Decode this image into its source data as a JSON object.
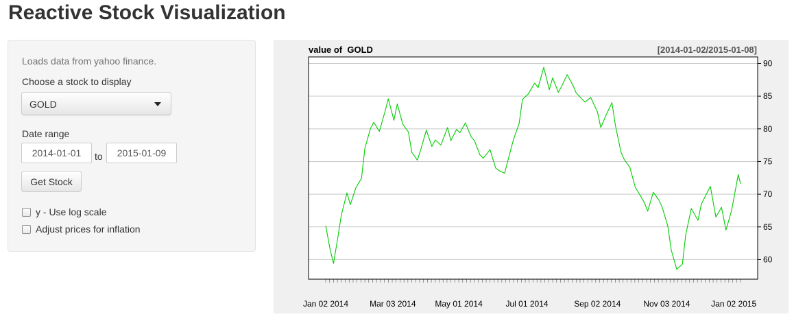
{
  "page": {
    "title": "Reactive Stock Visualization"
  },
  "sidebar": {
    "help_text": "Loads data from yahoo finance.",
    "stock_label": "Choose a stock to display",
    "stock_selected": "GOLD",
    "date_range_label": "Date range",
    "date_start": "2014-01-01",
    "date_to": "to",
    "date_end": "2015-01-09",
    "get_stock_button": "Get Stock",
    "log_scale_label": "y - Use log scale",
    "log_scale_checked": false,
    "inflation_label": "Adjust prices for inflation",
    "inflation_checked": false
  },
  "chart_data": {
    "type": "line",
    "title": "value of  GOLD",
    "date_range_label": "[2014-01-02/2015-01-08]",
    "line_color": "#00cc00",
    "grid": true,
    "y_axis_side": "right",
    "ylim": [
      57,
      91
    ],
    "y_ticks": [
      60,
      65,
      70,
      75,
      80,
      85,
      90
    ],
    "x_range": [
      "2014-01-02",
      "2015-01-08"
    ],
    "x_tick_labels": [
      "Jan 02 2014",
      "Mar 03 2014",
      "May 01 2014",
      "Jul 01 2014",
      "Sep 02 2014",
      "Nov 03 2014",
      "Jan 02 2015"
    ],
    "x_tick_dates": [
      "2014-01-02",
      "2014-03-03",
      "2014-05-01",
      "2014-07-01",
      "2014-09-02",
      "2014-11-03",
      "2015-01-02"
    ],
    "series": [
      {
        "x": [
          "2014-01-02",
          "2014-01-06",
          "2014-01-09",
          "2014-01-13",
          "2014-01-16",
          "2014-01-21",
          "2014-01-24",
          "2014-01-29",
          "2014-02-03",
          "2014-02-06",
          "2014-02-11",
          "2014-02-14",
          "2014-02-19",
          "2014-02-24",
          "2014-02-27",
          "2014-03-04",
          "2014-03-07",
          "2014-03-12",
          "2014-03-17",
          "2014-03-20",
          "2014-03-25",
          "2014-03-28",
          "2014-04-02",
          "2014-04-07",
          "2014-04-10",
          "2014-04-15",
          "2014-04-21",
          "2014-04-24",
          "2014-04-29",
          "2014-05-02",
          "2014-05-07",
          "2014-05-12",
          "2014-05-15",
          "2014-05-20",
          "2014-05-23",
          "2014-05-29",
          "2014-06-03",
          "2014-06-06",
          "2014-06-11",
          "2014-06-16",
          "2014-06-19",
          "2014-06-24",
          "2014-06-27",
          "2014-07-02",
          "2014-07-08",
          "2014-07-11",
          "2014-07-16",
          "2014-07-21",
          "2014-07-24",
          "2014-07-29",
          "2014-08-01",
          "2014-08-06",
          "2014-08-11",
          "2014-08-14",
          "2014-08-19",
          "2014-08-22",
          "2014-08-27",
          "2014-09-02",
          "2014-09-05",
          "2014-09-10",
          "2014-09-15",
          "2014-09-18",
          "2014-09-23",
          "2014-09-26",
          "2014-10-01",
          "2014-10-06",
          "2014-10-09",
          "2014-10-14",
          "2014-10-17",
          "2014-10-22",
          "2014-10-27",
          "2014-10-30",
          "2014-11-04",
          "2014-11-07",
          "2014-11-12",
          "2014-11-17",
          "2014-11-20",
          "2014-11-25",
          "2014-12-01",
          "2014-12-04",
          "2014-12-09",
          "2014-12-12",
          "2014-12-17",
          "2014-12-22",
          "2014-12-26",
          "2014-12-31",
          "2015-01-06",
          "2015-01-08"
        ],
        "values": [
          65.2,
          61.5,
          59.4,
          63.5,
          66.8,
          70.2,
          68.4,
          71.0,
          72.4,
          77.0,
          80.0,
          81.0,
          79.6,
          82.6,
          84.6,
          81.3,
          83.8,
          80.7,
          79.5,
          76.4,
          75.2,
          76.8,
          79.8,
          77.3,
          78.3,
          77.5,
          80.2,
          78.2,
          79.9,
          79.4,
          80.9,
          78.8,
          78.2,
          76.0,
          75.5,
          76.8,
          74.0,
          73.6,
          73.2,
          76.5,
          78.4,
          80.8,
          84.5,
          85.3,
          87.0,
          86.3,
          89.4,
          86.0,
          87.8,
          85.6,
          86.5,
          88.3,
          86.7,
          85.5,
          84.6,
          84.1,
          84.8,
          82.6,
          80.2,
          82.2,
          84.0,
          80.6,
          76.5,
          75.3,
          74.1,
          71.0,
          70.2,
          68.7,
          67.4,
          70.3,
          69.1,
          68.0,
          65.1,
          61.5,
          58.5,
          59.3,
          63.8,
          67.8,
          66.0,
          68.5,
          70.2,
          71.2,
          66.5,
          68.0,
          64.5,
          67.5,
          73.0,
          71.6
        ]
      }
    ]
  }
}
